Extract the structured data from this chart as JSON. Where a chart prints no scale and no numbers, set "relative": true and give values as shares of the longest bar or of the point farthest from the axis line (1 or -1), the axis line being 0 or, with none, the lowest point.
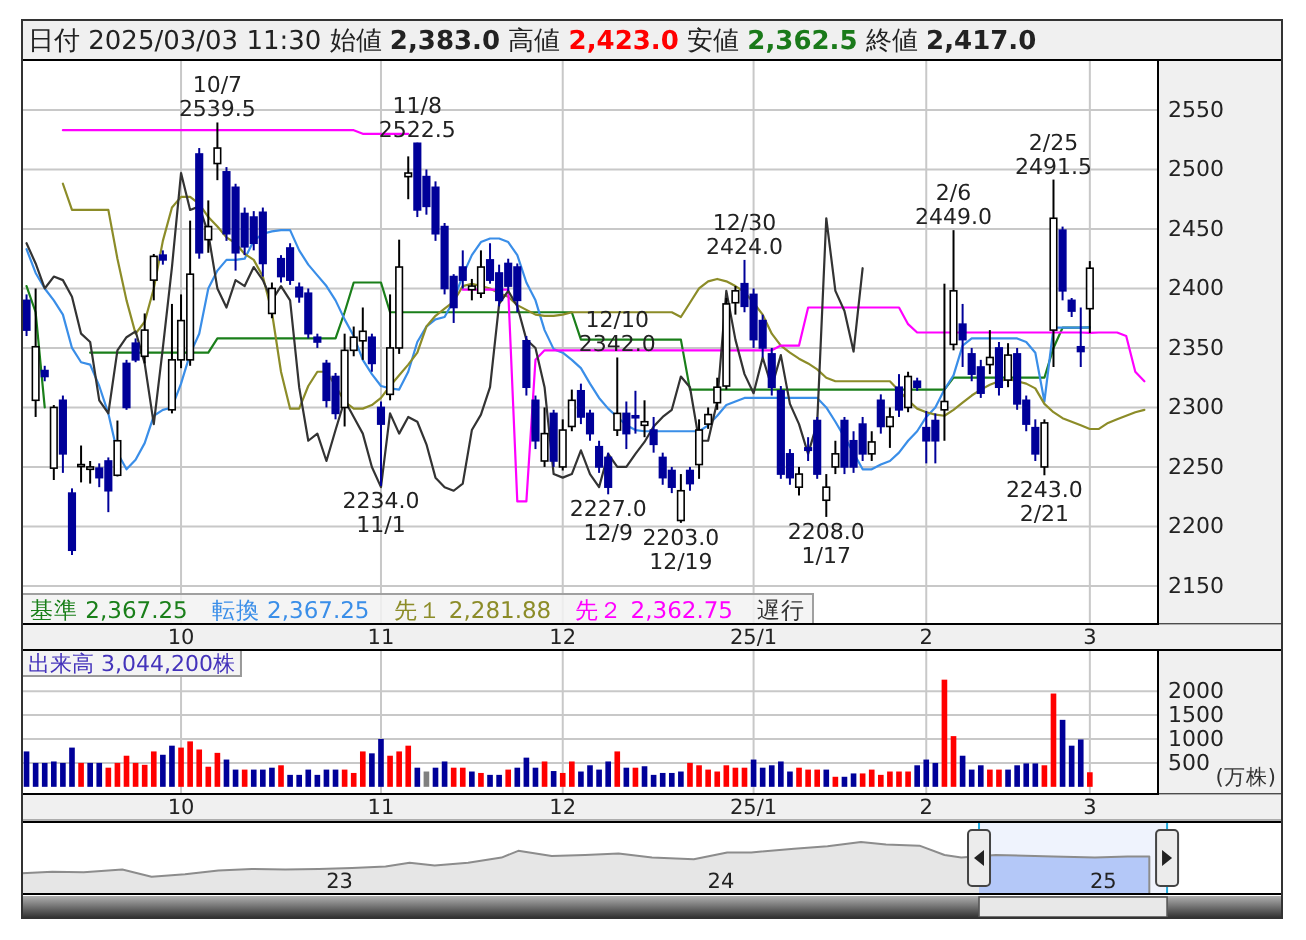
{
  "chart_data": [
    {
      "type": "candlestick",
      "title": "日付 2025/03/03 11:30 始値 **2,383.0** 高値 **2,423.0** 安値 **2,362.5** 終値 **2,417.0**",
      "categories": [
        null,
        null,
        null,
        null,
        null,
        null,
        null,
        null,
        null,
        null,
        null,
        null,
        null,
        null,
        null,
        null,
        null,
        "10",
        null,
        null,
        null,
        null,
        null,
        null,
        null,
        null,
        null,
        null,
        null,
        null,
        null,
        null,
        null,
        null,
        null,
        null,
        null,
        null,
        null,
        "11",
        null,
        null,
        null,
        null,
        null,
        null,
        null,
        null,
        null,
        null,
        null,
        null,
        null,
        null,
        null,
        null,
        null,
        null,
        null,
        "12",
        null,
        null,
        null,
        null,
        null,
        null,
        null,
        null,
        null,
        null,
        null,
        null,
        null,
        null,
        null,
        null,
        null,
        null,
        null,
        null,
        "25/1",
        null,
        null,
        null,
        null,
        null,
        null,
        null,
        null,
        null,
        null,
        null,
        null,
        null,
        null,
        null,
        null,
        null,
        null,
        "2",
        null,
        null,
        null,
        null,
        null,
        null,
        null,
        null,
        null,
        null,
        null,
        null,
        null,
        null,
        null,
        null,
        null,
        "3",
        null,
        null,
        null,
        null,
        null,
        null,
        null
      ],
      "ohlc": [
        [
          2390,
          2395,
          2360,
          2365
        ],
        [
          2306,
          2400,
          2292,
          2351
        ],
        [
          2331,
          2335,
          2322,
          2326
        ],
        [
          2249,
          2302,
          2239,
          2300
        ],
        [
          2306,
          2310,
          2245,
          2261
        ],
        [
          2228,
          2232,
          2176,
          2180
        ],
        [
          2251,
          2268,
          2237,
          2252
        ],
        [
          2248,
          2255,
          2236,
          2250
        ],
        [
          2249,
          2253,
          2233,
          2241
        ],
        [
          2255,
          2258,
          2212,
          2230
        ],
        [
          2243,
          2289,
          2242,
          2272
        ],
        [
          2337,
          2340,
          2298,
          2300
        ],
        [
          2354,
          2358,
          2338,
          2340
        ],
        [
          2343,
          2379,
          2337,
          2365
        ],
        [
          2407,
          2429,
          2390,
          2427
        ],
        [
          2428,
          2432,
          2420,
          2424
        ],
        [
          2298,
          2387,
          2295,
          2340
        ],
        [
          2340,
          2395,
          2333,
          2373
        ],
        [
          2340,
          2457,
          2335,
          2412
        ],
        [
          2513,
          2518,
          2425,
          2430
        ],
        [
          2441,
          2474,
          2430,
          2452
        ],
        [
          2505,
          2539.5,
          2491,
          2518
        ],
        [
          2498,
          2502,
          2440,
          2446
        ],
        [
          2485,
          2488,
          2415,
          2430
        ],
        [
          2463,
          2468,
          2428,
          2435
        ],
        [
          2460,
          2465,
          2432,
          2438
        ],
        [
          2464,
          2468,
          2410,
          2421
        ],
        [
          2379,
          2405,
          2375,
          2400
        ],
        [
          2425,
          2428,
          2405,
          2410
        ],
        [
          2434,
          2438,
          2403,
          2407
        ],
        [
          2401,
          2405,
          2388,
          2393
        ],
        [
          2396,
          2400,
          2358,
          2362
        ],
        [
          2359,
          2362,
          2350,
          2355
        ],
        [
          2337,
          2340,
          2300,
          2306
        ],
        [
          2326,
          2329,
          2290,
          2295
        ],
        [
          2300,
          2362,
          2284,
          2348
        ],
        [
          2348,
          2368,
          2343,
          2359
        ],
        [
          2356,
          2384,
          2340,
          2364
        ],
        [
          2359,
          2362,
          2330,
          2337
        ],
        [
          2300,
          2305,
          2234,
          2286
        ],
        [
          2311,
          2395,
          2306,
          2350
        ],
        [
          2350,
          2441,
          2345,
          2418
        ],
        [
          2494,
          2511,
          2475,
          2497
        ],
        [
          2522,
          2522.5,
          2460,
          2466
        ],
        [
          2494,
          2500,
          2462,
          2469
        ],
        [
          2485,
          2490,
          2440,
          2446
        ],
        [
          2452,
          2455,
          2395,
          2400
        ],
        [
          2410,
          2412,
          2371,
          2384
        ],
        [
          2418,
          2432,
          2400,
          2407
        ],
        [
          2399,
          2408,
          2390,
          2402
        ],
        [
          2396,
          2432,
          2392,
          2418
        ],
        [
          2424,
          2438,
          2404,
          2407
        ],
        [
          2413,
          2420,
          2385,
          2390
        ],
        [
          2421,
          2425,
          2398,
          2402
        ],
        [
          2418,
          2421,
          2380,
          2390
        ],
        [
          2356,
          2360,
          2310,
          2317
        ],
        [
          2306,
          2310,
          2265,
          2272
        ],
        [
          2255,
          2300,
          2250,
          2278
        ],
        [
          2295,
          2298,
          2250,
          2255
        ],
        [
          2250,
          2290,
          2247,
          2281
        ],
        [
          2284,
          2315,
          2280,
          2306
        ],
        [
          2314,
          2320,
          2286,
          2292
        ],
        [
          2295,
          2298,
          2272,
          2278
        ],
        [
          2267,
          2272,
          2245,
          2250
        ],
        [
          2258,
          2262,
          2227,
          2233
        ],
        [
          2281,
          2342,
          2276,
          2295
        ],
        [
          2295,
          2305,
          2265,
          2278
        ],
        [
          2293,
          2314,
          2278,
          2292
        ],
        [
          2285,
          2306,
          2275,
          2288
        ],
        [
          2281,
          2292,
          2262,
          2269
        ],
        [
          2258,
          2262,
          2235,
          2241
        ],
        [
          2247,
          2250,
          2228,
          2233
        ],
        [
          2205,
          2244,
          2203,
          2230
        ],
        [
          2247,
          2250,
          2230,
          2236
        ],
        [
          2252,
          2290,
          2240,
          2281
        ],
        [
          2286,
          2300,
          2282,
          2294
        ],
        [
          2304,
          2325,
          2298,
          2317
        ],
        [
          2318,
          2392,
          2315,
          2387
        ],
        [
          2388,
          2402,
          2378,
          2398
        ],
        [
          2404,
          2424,
          2380,
          2385
        ],
        [
          2395,
          2400,
          2350,
          2357
        ],
        [
          2373,
          2378,
          2342,
          2350
        ],
        [
          2345,
          2350,
          2310,
          2317
        ],
        [
          2314,
          2318,
          2240,
          2244
        ],
        [
          2261,
          2265,
          2235,
          2241
        ],
        [
          2233,
          2250,
          2226,
          2244
        ],
        [
          2266,
          2275,
          2255,
          2264
        ],
        [
          2289,
          2292,
          2240,
          2244
        ],
        [
          2222,
          2244,
          2208,
          2233
        ],
        [
          2250,
          2272,
          2244,
          2261
        ],
        [
          2289,
          2292,
          2244,
          2250
        ],
        [
          2272,
          2280,
          2245,
          2250
        ],
        [
          2286,
          2292,
          2255,
          2261
        ],
        [
          2261,
          2280,
          2255,
          2271
        ],
        [
          2306,
          2311,
          2278,
          2284
        ],
        [
          2284,
          2300,
          2266,
          2292
        ],
        [
          2317,
          2328,
          2292,
          2298
        ],
        [
          2300,
          2330,
          2296,
          2326
        ],
        [
          2322,
          2325,
          2314,
          2317
        ],
        [
          2283,
          2297,
          2253,
          2272
        ],
        [
          2289,
          2295,
          2253,
          2272
        ],
        [
          2298,
          2404,
          2272,
          2305
        ],
        [
          2353,
          2449,
          2348,
          2398
        ],
        [
          2370,
          2387,
          2334,
          2357
        ],
        [
          2345,
          2350,
          2322,
          2328
        ],
        [
          2334,
          2340,
          2308,
          2312
        ],
        [
          2336,
          2365,
          2328,
          2342
        ],
        [
          2350,
          2355,
          2310,
          2317
        ],
        [
          2323,
          2354,
          2317,
          2344
        ],
        [
          2345,
          2350,
          2298,
          2303
        ],
        [
          2306,
          2310,
          2280,
          2286
        ],
        [
          2283,
          2290,
          2255,
          2261
        ],
        [
          2250,
          2290,
          2243,
          2287
        ],
        [
          2365,
          2491.5,
          2334,
          2459
        ],
        [
          2449,
          2452,
          2390,
          2398
        ],
        [
          2390,
          2392,
          2376,
          2381
        ],
        [
          2351,
          2384,
          2334,
          2347
        ],
        [
          2383,
          2423,
          2362.5,
          2417
        ],
        null,
        null,
        null,
        null,
        null,
        null,
        null
      ],
      "series": [
        {
          "name": "基準 2,367.25",
          "type": "line",
          "color": "#1a7f1a",
          "values": [
            2402,
            2380,
            2300,
            null,
            null,
            null,
            null,
            2346,
            2346,
            2346,
            2346,
            2346,
            2346,
            2346,
            2346,
            2346,
            2346,
            2346,
            2346,
            2346,
            2346,
            2358,
            2358,
            2358,
            2358,
            2358,
            2358,
            2358,
            2358,
            2358,
            2358,
            2358,
            2358,
            2358,
            2358,
            2380,
            2405,
            2405,
            2405,
            2405,
            2380,
            2380,
            2380,
            2380,
            2380,
            2380,
            2380,
            2380,
            2380,
            2380,
            2380,
            2380,
            2380,
            2380,
            2380,
            2380,
            2380,
            2380,
            2380,
            2380,
            2380,
            2357,
            2357,
            2357,
            2357,
            2357,
            2357,
            2357,
            2357,
            2357,
            2357,
            2357,
            2357,
            2315,
            2315,
            2315,
            2315,
            2315,
            2315,
            2315,
            2315,
            2315,
            2315,
            2315,
            2315,
            2315,
            2315,
            2315,
            2315,
            2315,
            2315,
            2315,
            2315,
            2315,
            2315,
            2315,
            2315,
            2315,
            2315,
            2315,
            2315,
            2315,
            2325,
            2325,
            2325,
            2325,
            2325,
            2325,
            2325,
            2325,
            2325,
            2325,
            2325,
            2350,
            2367,
            2367,
            2367,
            2367.25,
            null,
            null,
            null,
            null,
            null,
            null,
            null
          ]
        },
        {
          "name": "転換 2,367.25",
          "type": "line",
          "color": "#3a8ee8",
          "values": [
            2433,
            2413,
            2400,
            2390,
            2378,
            2350,
            2338,
            2336,
            2318,
            2295,
            2262,
            2248,
            2256,
            2270,
            2293,
            2298,
            2300,
            2320,
            2345,
            2362,
            2400,
            2415,
            2424,
            2424,
            2425,
            2440,
            2446,
            2448,
            2449,
            2449,
            2432,
            2420,
            2411,
            2402,
            2390,
            2374,
            2360,
            2340,
            2328,
            2318,
            2316,
            2315,
            2330,
            2355,
            2368,
            2374,
            2376,
            2390,
            2411,
            2428,
            2439,
            2442,
            2442,
            2439,
            2428,
            2405,
            2390,
            2365,
            2349,
            2346,
            2340,
            2333,
            2320,
            2308,
            2299,
            2292,
            2285,
            2281,
            2280,
            2280,
            2280,
            2280,
            2280,
            2280,
            2280,
            2285,
            2293,
            2302,
            2305,
            2308,
            2308,
            2308,
            2308,
            2308,
            2308,
            2308,
            2308,
            2308,
            2300,
            2288,
            2275,
            2262,
            2248,
            2248,
            2252,
            2255,
            2262,
            2272,
            2280,
            2292,
            2300,
            2315,
            2327,
            2352,
            2358,
            2358,
            2358,
            2358,
            2358,
            2358,
            2355,
            2346,
            2305,
            2367,
            2367,
            2367,
            2367,
            2367.25,
            null,
            null,
            null,
            null,
            null,
            null,
            null
          ]
        },
        {
          "name": "先１ 2,281.88",
          "type": "line",
          "color": "#8c8c28",
          "values": [
            null,
            null,
            null,
            null,
            2488,
            2466,
            2466,
            2466,
            2466,
            2466,
            2425,
            2390,
            2362,
            2372,
            2400,
            2440,
            2468,
            2477,
            2477,
            2471,
            2460,
            2452,
            2443,
            2438,
            2429,
            2424,
            2410,
            2380,
            2330,
            2299,
            2299,
            2318,
            2330,
            2330,
            2318,
            2305,
            2299,
            2299,
            2302,
            2308,
            2318,
            2327,
            2336,
            2346,
            2368,
            2377,
            2383,
            2389,
            2402,
            2404,
            2402,
            2400,
            2396,
            2393,
            2386,
            2382,
            2378,
            2377,
            2377,
            2378,
            2380,
            2380,
            2380,
            2380,
            2380,
            2380,
            2380,
            2380,
            2380,
            2380,
            2380,
            2380,
            2376,
            2388,
            2400,
            2406,
            2408,
            2406,
            2402,
            2397,
            2388,
            2378,
            2362,
            2352,
            2346,
            2341,
            2337,
            2332,
            2325,
            2322,
            2322,
            2322,
            2322,
            2322,
            2322,
            2322,
            2314,
            2306,
            2299,
            2296,
            2294,
            2293,
            2298,
            2304,
            2310,
            2315,
            2319,
            2322,
            2324,
            2322,
            2320,
            2316,
            2303,
            2296,
            2291,
            2288,
            2285,
            2281.88,
            2282,
            2287,
            2290,
            2293,
            2296,
            2298,
            null
          ]
        },
        {
          "name": "先２ 2,362.75",
          "type": "line",
          "color": "#ff00ff",
          "values": [
            null,
            null,
            null,
            null,
            2533,
            2533,
            2533,
            2533,
            2533,
            2533,
            2533,
            2533,
            2533,
            2533,
            2533,
            2533,
            2533,
            2533,
            2533,
            2533,
            2533,
            2533,
            2533,
            2533,
            2533,
            2533,
            2533,
            2533,
            2533,
            2533,
            2533,
            2533,
            2533,
            2533,
            2533,
            2533,
            2533,
            2530,
            2530,
            2530,
            2530,
            2530,
            2530,
            null,
            null,
            null,
            null,
            null,
            2399,
            2399,
            2399,
            2399,
            2399,
            2399,
            2221,
            2221,
            2340,
            2348,
            2348,
            2348,
            2348,
            2348,
            2348,
            2348,
            2348,
            2348,
            2348,
            2348,
            2348,
            2348,
            2348,
            2348,
            2348,
            2348,
            2348,
            2348,
            2348,
            2348,
            2348,
            2348,
            2348,
            2348,
            2348,
            2352,
            2352,
            2352,
            2384,
            2384,
            2384,
            2384,
            2384,
            2384,
            2384,
            2384,
            2384,
            2384,
            2384,
            2370,
            2363,
            2363,
            2363,
            2363,
            2363,
            2363,
            2363,
            2363,
            2363,
            2363,
            2363,
            2363,
            2363,
            2363,
            2363,
            2363,
            2363,
            2363,
            2363,
            2362.75,
            2363,
            2363,
            2363,
            2360,
            2330,
            2322,
            null
          ]
        },
        {
          "name": "遅行",
          "type": "line",
          "color": "#333333",
          "values": [
            2438,
            2421,
            2400,
            2410,
            2407,
            2393,
            2362,
            2355,
            2306,
            2295,
            2348,
            2359,
            2364,
            2337,
            2286,
            2350,
            2418,
            2497,
            2466,
            2469,
            2446,
            2400,
            2384,
            2407,
            2402,
            2418,
            2407,
            2390,
            2402,
            2390,
            2317,
            2272,
            2278,
            2255,
            2281,
            2306,
            2292,
            2278,
            2250,
            2233,
            2295,
            2278,
            2292,
            2288,
            2269,
            2241,
            2233,
            2230,
            2236,
            2281,
            2294,
            2317,
            2387,
            2398,
            2385,
            2357,
            2350,
            2317,
            2244,
            2241,
            2244,
            2264,
            2244,
            2233,
            2261,
            2250,
            2250,
            2261,
            2271,
            2284,
            2292,
            2298,
            2326,
            2317,
            2272,
            2272,
            2305,
            2398,
            2357,
            2328,
            2312,
            2342,
            2317,
            2344,
            2303,
            2286,
            2261,
            2287,
            2459,
            2398,
            2381,
            2347,
            2417,
            null,
            null,
            null,
            null,
            null,
            null,
            null,
            null,
            null,
            null,
            null,
            null,
            null,
            null,
            null,
            null,
            null,
            null,
            null,
            null,
            null,
            null,
            null,
            null,
            null,
            null,
            null,
            null,
            null,
            null,
            null,
            null
          ]
        }
      ],
      "ylim": [
        2118,
        2592
      ],
      "yticks": [
        2150,
        2200,
        2250,
        2300,
        2350,
        2400,
        2450,
        2500,
        2550
      ],
      "grid": true,
      "legend": "bottom left",
      "annotations": [
        {
          "text": "10/7 2539.5",
          "y": 2539.5
        },
        {
          "text": "2234.0 11/1",
          "y": 2234
        },
        {
          "text": "11/8 2522.5",
          "y": 2522.5
        },
        {
          "text": "2227.0 12/9",
          "y": 2227
        },
        {
          "text": "12/10 2342.0",
          "y": 2342
        },
        {
          "text": "2203.0 12/19",
          "y": 2203
        },
        {
          "text": "12/30 2424.0",
          "y": 2424
        },
        {
          "text": "2208.0 1/17",
          "y": 2208
        },
        {
          "text": "2/6 2449.0",
          "y": 2449
        },
        {
          "text": "2243.0 2/21",
          "y": 2243
        },
        {
          "text": "2/25 2491.5",
          "y": 2491.5
        }
      ]
    },
    {
      "type": "bar",
      "title": "出来高 3,044,200株",
      "ylabel": "(万株)",
      "categories": [
        null,
        null,
        null,
        null,
        null,
        null,
        null,
        null,
        null,
        null,
        null,
        null,
        null,
        null,
        null,
        null,
        null,
        "10",
        null,
        null,
        null,
        null,
        null,
        null,
        null,
        null,
        null,
        null,
        null,
        null,
        null,
        null,
        null,
        null,
        null,
        null,
        null,
        null,
        null,
        "11",
        null,
        null,
        null,
        null,
        null,
        null,
        null,
        null,
        null,
        null,
        null,
        null,
        null,
        null,
        null,
        null,
        null,
        null,
        null,
        "12",
        null,
        null,
        null,
        null,
        null,
        null,
        null,
        null,
        null,
        null,
        null,
        null,
        null,
        null,
        null,
        null,
        null,
        null,
        null,
        null,
        "25/1",
        null,
        null,
        null,
        null,
        null,
        null,
        null,
        null,
        null,
        null,
        null,
        null,
        null,
        null,
        null,
        null,
        null,
        null,
        "2",
        null,
        null,
        null,
        null,
        null,
        null,
        null,
        null,
        null,
        null,
        null,
        null,
        null,
        null,
        null,
        null,
        null,
        "3",
        null,
        null,
        null,
        null,
        null,
        null,
        null
      ],
      "values": [
        740,
        500,
        500,
        530,
        500,
        820,
        500,
        500,
        500,
        400,
        500,
        650,
        500,
        460,
        740,
        670,
        860,
        820,
        950,
        780,
        420,
        710,
        570,
        360,
        360,
        360,
        360,
        400,
        450,
        250,
        250,
        360,
        250,
        360,
        360,
        360,
        290,
        740,
        700,
        1000,
        650,
        740,
        860,
        400,
        320,
        400,
        530,
        400,
        400,
        320,
        290,
        250,
        250,
        360,
        400,
        610,
        400,
        530,
        330,
        290,
        530,
        320,
        450,
        360,
        530,
        740,
        400,
        400,
        430,
        250,
        290,
        290,
        320,
        500,
        450,
        360,
        320,
        450,
        400,
        400,
        570,
        400,
        450,
        530,
        320,
        400,
        360,
        360,
        360,
        210,
        210,
        280,
        280,
        360,
        250,
        320,
        320,
        320,
        450,
        570,
        500,
        2240,
        1060,
        650,
        360,
        450,
        360,
        360,
        360,
        450,
        490,
        490,
        450,
        1950,
        1400,
        860,
        990,
        304.42,
        null,
        null,
        null,
        null,
        null,
        null,
        null
      ],
      "colors": [
        "#000099",
        "#000099",
        "#000099",
        "#000099",
        "#000099",
        "#000099",
        "#ff0000",
        "#000099",
        "#000099",
        "#ff0000",
        "#ff0000",
        "#ff0000",
        "#ff0000",
        "#ff0000",
        "#ff0000",
        "#000099",
        "#000099",
        "#ff0000",
        "#ff0000",
        "#ff0000",
        "#ff0000",
        "#ff0000",
        "#000099",
        "#000099",
        "#ff0000",
        "#000099",
        "#000099",
        "#000099",
        "#ff0000",
        "#000099",
        "#000099",
        "#000099",
        "#000099",
        "#000099",
        "#000099",
        "#ff0000",
        "#ff0000",
        "#ff0000",
        "#000099",
        "#000099",
        "#ff0000",
        "#ff0000",
        "#ff0000",
        "#000099",
        "#808080",
        "#000099",
        "#000099",
        "#ff0000",
        "#ff0000",
        "#000099",
        "#ff0000",
        "#000099",
        "#000099",
        "#ff0000",
        "#000099",
        "#000099",
        "#000099",
        "#ff0000",
        "#000099",
        "#ff0000",
        "#ff0000",
        "#000099",
        "#000099",
        "#000099",
        "#000099",
        "#ff0000",
        "#000099",
        "#ff0000",
        "#000099",
        "#000099",
        "#000099",
        "#000099",
        "#000099",
        "#ff0000",
        "#ff0000",
        "#ff0000",
        "#ff0000",
        "#ff0000",
        "#ff0000",
        "#ff0000",
        "#000099",
        "#000099",
        "#000099",
        "#000099",
        "#000099",
        "#ff0000",
        "#ff0000",
        "#ff0000",
        "#000099",
        "#ff0000",
        "#000099",
        "#000099",
        "#ff0000",
        "#ff0000",
        "#ff0000",
        "#ff0000",
        "#ff0000",
        "#ff0000",
        "#000099",
        "#000099",
        "#000099",
        "#ff0000",
        "#ff0000",
        "#000099",
        "#000099",
        "#000099",
        "#ff0000",
        "#ff0000",
        "#000099",
        "#000099",
        "#000099",
        "#000099",
        "#ff0000",
        "#ff0000",
        "#000099",
        "#000099",
        "#000099",
        "#ff0000",
        null,
        null,
        null,
        null,
        null,
        null,
        null
      ],
      "ylim": [
        -150,
        2860
      ],
      "yticks": [
        500,
        1000,
        1500,
        2000
      ],
      "grid": true
    },
    {
      "type": "area",
      "relative": true,
      "x": [
        "2022-03-03",
        "2022-04-01",
        "2022-05-01",
        "2022-06-07",
        "2022-07-05",
        "2022-08-06",
        "2022-09-07",
        "2022-10-09",
        "2022-11-10",
        "2022-12-12",
        "2023-01-13",
        "2023-02-14",
        "2023-03-09",
        "2023-04-02",
        "2023-05-04",
        "2023-06-05",
        "2023-06-21",
        "2023-07-23",
        "2023-08-24",
        "2023-09-25",
        "2023-10-27",
        "2023-12-06",
        "2024-01-07",
        "2024-01-30",
        "2024-03-11",
        "2024-04-12",
        "2024-05-14",
        "2024-06-07",
        "2024-07-09",
        "2024-08-02",
        "2024-08-18",
        "2024-09-20",
        "2024-11-14",
        "2024-12-24",
        "2025-01-24",
        "2025-02-14"
      ],
      "values": [
        0.4,
        0.43,
        0.42,
        0.47,
        0.33,
        0.38,
        0.45,
        0.48,
        0.47,
        0.48,
        0.5,
        0.53,
        0.6,
        0.55,
        0.6,
        0.7,
        0.83,
        0.73,
        0.75,
        0.78,
        0.7,
        0.67,
        0.8,
        0.8,
        0.87,
        0.92,
        1,
        0.95,
        0.93,
        0.75,
        0.7,
        0.75,
        0.72,
        0.7,
        0.72,
        0.72
      ],
      "color": "#8c8c8c",
      "xlim": [
        "2022-03-03",
        "2025-06-21"
      ],
      "xticks": [
        {
          "value": "2023-01-01",
          "label": "23"
        },
        {
          "value": "2024-01-01",
          "label": "24"
        },
        {
          "value": "2025-01-01",
          "label": "25"
        }
      ],
      "bands": [
        {
          "axis": "x",
          "from": "2024-09-04",
          "to": "2025-03-03",
          "color": "#b4c8f8"
        }
      ]
    }
  ]
}
